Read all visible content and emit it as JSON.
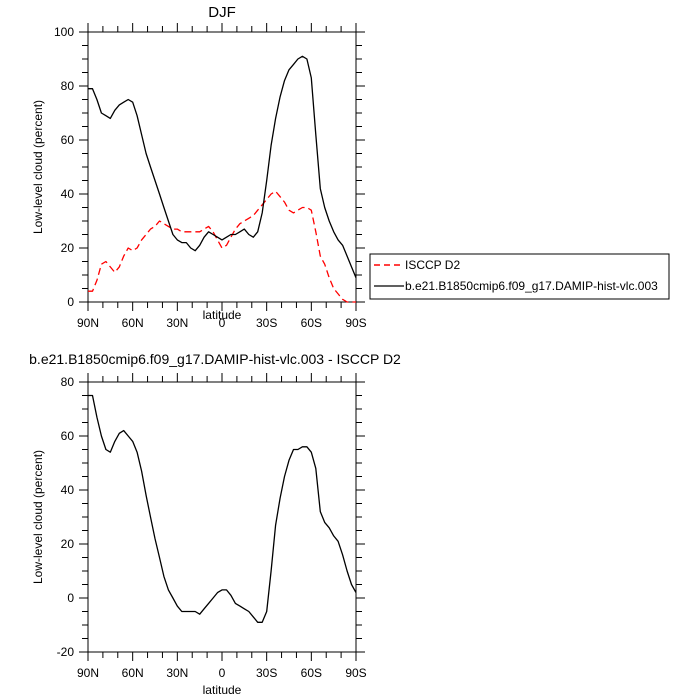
{
  "chart_data": [
    {
      "type": "line",
      "title": "DJF",
      "xlabel": "latitude",
      "ylabel": "Low-level cloud (percent)",
      "xlim": [
        90,
        -90
      ],
      "ylim": [
        0,
        100
      ],
      "x_ticks": [
        90,
        60,
        30,
        0,
        -30,
        -60,
        -90
      ],
      "x_tick_labels": [
        "90N",
        "60N",
        "30N",
        "0",
        "30S",
        "60S",
        "90S"
      ],
      "y_ticks": [
        0,
        20,
        40,
        60,
        80,
        100
      ],
      "y_tick_labels": [
        "0",
        "20",
        "40",
        "60",
        "80",
        "100"
      ],
      "legend_position": "outside-right",
      "series": [
        {
          "name": "ISCCP D2",
          "color": "#ff0000",
          "dash": "dashed",
          "x": [
            90,
            87,
            84,
            81,
            78,
            75,
            72,
            69,
            66,
            63,
            60,
            57,
            54,
            51,
            48,
            45,
            42,
            39,
            36,
            33,
            30,
            27,
            24,
            21,
            18,
            15,
            12,
            9,
            6,
            3,
            0,
            -3,
            -6,
            -9,
            -12,
            -15,
            -18,
            -21,
            -24,
            -27,
            -30,
            -33,
            -36,
            -39,
            -42,
            -45,
            -48,
            -51,
            -54,
            -57,
            -60,
            -63,
            -66,
            -69,
            -72,
            -75,
            -78,
            -81,
            -84,
            -87,
            -90
          ],
          "y": [
            4,
            4,
            8,
            14,
            15,
            13,
            11,
            13,
            17,
            20,
            19,
            20,
            23,
            25,
            27,
            28,
            30,
            29,
            28,
            27,
            27,
            26,
            26,
            26,
            26,
            26,
            27,
            28,
            26,
            23,
            20,
            21,
            24,
            27,
            29,
            30,
            31,
            32,
            34,
            36,
            38,
            40,
            41,
            39,
            37,
            34,
            33,
            34,
            35,
            35,
            34,
            26,
            17,
            14,
            9,
            5,
            3,
            1,
            0,
            0,
            0
          ]
        },
        {
          "name": "b.e21.B1850cmip6.f09_g17.DAMIP-hist-vlc.003",
          "color": "#000000",
          "dash": "solid",
          "x": [
            90,
            87,
            84,
            81,
            78,
            75,
            72,
            69,
            66,
            63,
            60,
            57,
            54,
            51,
            48,
            45,
            42,
            39,
            36,
            33,
            30,
            27,
            24,
            21,
            18,
            15,
            12,
            9,
            6,
            3,
            0,
            -3,
            -6,
            -9,
            -12,
            -15,
            -18,
            -21,
            -24,
            -27,
            -30,
            -33,
            -36,
            -39,
            -42,
            -45,
            -48,
            -51,
            -54,
            -57,
            -60,
            -63,
            -66,
            -69,
            -72,
            -75,
            -78,
            -81,
            -84,
            -87,
            -90
          ],
          "y": [
            79,
            79,
            75,
            70,
            69,
            68,
            71,
            73,
            74,
            75,
            74,
            69,
            62,
            55,
            50,
            45,
            40,
            35,
            30,
            25,
            23,
            22,
            22,
            20,
            19,
            21,
            24,
            26,
            25,
            24,
            23,
            24,
            25,
            25,
            26,
            27,
            25,
            24,
            26,
            33,
            45,
            58,
            68,
            76,
            82,
            86,
            88,
            90,
            91,
            90,
            83,
            62,
            42,
            35,
            30,
            26,
            23,
            21,
            17,
            13,
            9
          ]
        }
      ]
    },
    {
      "type": "line",
      "title": "b.e21.B1850cmip6.f09_g17.DAMIP-hist-vlc.003 - ISCCP D2",
      "xlabel": "latitude",
      "ylabel": "Low-level cloud (percent)",
      "xlim": [
        90,
        -90
      ],
      "ylim": [
        -20,
        80
      ],
      "x_ticks": [
        90,
        60,
        30,
        0,
        -30,
        -60,
        -90
      ],
      "x_tick_labels": [
        "90N",
        "60N",
        "30N",
        "0",
        "30S",
        "60S",
        "90S"
      ],
      "y_ticks": [
        -20,
        0,
        20,
        40,
        60,
        80
      ],
      "y_tick_labels": [
        "-20",
        "0",
        "20",
        "40",
        "60",
        "80"
      ],
      "series": [
        {
          "color": "#000000",
          "dash": "solid",
          "x": [
            90,
            87,
            84,
            81,
            78,
            75,
            72,
            69,
            66,
            63,
            60,
            57,
            54,
            51,
            48,
            45,
            42,
            39,
            36,
            33,
            30,
            27,
            24,
            21,
            18,
            15,
            12,
            9,
            6,
            3,
            0,
            -3,
            -6,
            -9,
            -12,
            -15,
            -18,
            -21,
            -24,
            -27,
            -30,
            -33,
            -36,
            -39,
            -42,
            -45,
            -48,
            -51,
            -54,
            -57,
            -60,
            -63,
            -66,
            -69,
            -72,
            -75,
            -78,
            -81,
            -84,
            -87,
            -90
          ],
          "y": [
            75,
            75,
            67,
            60,
            55,
            54,
            58,
            61,
            62,
            60,
            58,
            54,
            47,
            38,
            30,
            22,
            15,
            8,
            3,
            0,
            -3,
            -5,
            -5,
            -5,
            -5,
            -6,
            -4,
            -2,
            0,
            2,
            3,
            3,
            1,
            -2,
            -3,
            -4,
            -5,
            -7,
            -9,
            -9,
            -5,
            10,
            27,
            37,
            45,
            51,
            55,
            55,
            56,
            56,
            54,
            48,
            32,
            28,
            26,
            23,
            21,
            16,
            10,
            5,
            2
          ]
        }
      ]
    }
  ]
}
